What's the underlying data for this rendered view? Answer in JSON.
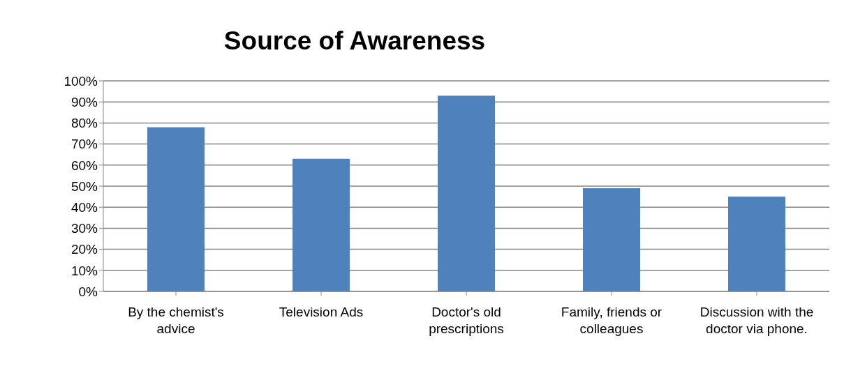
{
  "chart_data": {
    "type": "bar",
    "title": "Source of Awareness",
    "categories": [
      "By the chemist's advice",
      "Television Ads",
      "Doctor's old prescriptions",
      "Family, friends or colleagues",
      "Discussion with the doctor via phone."
    ],
    "values": [
      78,
      63,
      93,
      49,
      45
    ],
    "color": "#4f81bd",
    "ylim": [
      0,
      100
    ],
    "yticks": [
      {
        "value": 0,
        "label": "0%"
      },
      {
        "value": 10,
        "label": "10%"
      },
      {
        "value": 20,
        "label": "20%"
      },
      {
        "value": 30,
        "label": "30%"
      },
      {
        "value": 40,
        "label": "40%"
      },
      {
        "value": 50,
        "label": "50%"
      },
      {
        "value": 60,
        "label": "60%"
      },
      {
        "value": 70,
        "label": "70%"
      },
      {
        "value": 80,
        "label": "80%"
      },
      {
        "value": 90,
        "label": "90%"
      },
      {
        "value": 100,
        "label": "100%"
      }
    ],
    "grid": "y"
  }
}
